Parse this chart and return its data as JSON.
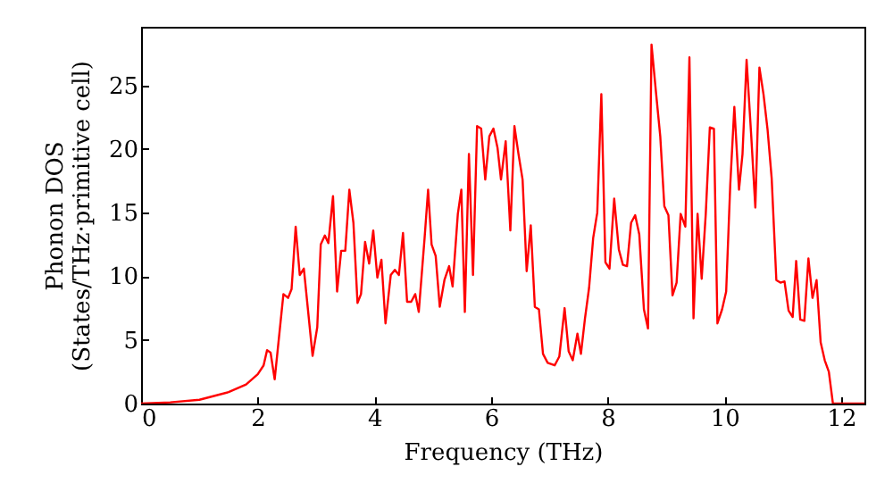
{
  "chart_data": {
    "type": "line",
    "xlabel": "Frequency (THz)",
    "ylabel": "Phonon DOS\n(States/THz·primitive cell)",
    "xlim": [
      0,
      12.4
    ],
    "ylim": [
      0,
      29.6
    ],
    "xticks": [
      0,
      2,
      4,
      6,
      8,
      10,
      12
    ],
    "yticks": [
      0,
      5,
      10,
      15,
      20,
      25
    ],
    "grid": false,
    "series": [
      {
        "color": "#ff0000",
        "x": [
          0,
          0.5,
          1.0,
          1.5,
          1.8,
          2.0,
          2.1,
          2.16,
          2.22,
          2.29,
          2.44,
          2.52,
          2.58,
          2.65,
          2.72,
          2.79,
          2.94,
          3.02,
          3.08,
          3.15,
          3.21,
          3.29,
          3.36,
          3.43,
          3.5,
          3.57,
          3.64,
          3.71,
          3.77,
          3.84,
          3.91,
          3.98,
          4.05,
          4.12,
          4.19,
          4.28,
          4.35,
          4.42,
          4.49,
          4.56,
          4.63,
          4.7,
          4.76,
          4.86,
          4.92,
          4.98,
          5.05,
          5.12,
          5.2,
          5.28,
          5.34,
          5.43,
          5.49,
          5.55,
          5.62,
          5.69,
          5.76,
          5.83,
          5.9,
          5.97,
          6.04,
          6.11,
          6.17,
          6.25,
          6.33,
          6.4,
          6.47,
          6.54,
          6.61,
          6.68,
          6.75,
          6.82,
          6.89,
          6.97,
          7.09,
          7.17,
          7.26,
          7.33,
          7.4,
          7.48,
          7.54,
          7.61,
          7.68,
          7.75,
          7.82,
          7.89,
          7.96,
          8.03,
          8.11,
          8.19,
          8.26,
          8.33,
          8.4,
          8.47,
          8.54,
          8.62,
          8.69,
          8.75,
          8.83,
          8.9,
          8.97,
          9.04,
          9.11,
          9.18,
          9.25,
          9.33,
          9.4,
          9.47,
          9.54,
          9.61,
          9.68,
          9.75,
          9.82,
          9.88,
          9.96,
          10.03,
          10.1,
          10.17,
          10.25,
          10.31,
          10.38,
          10.46,
          10.53,
          10.6,
          10.67,
          10.74,
          10.81,
          10.89,
          10.96,
          11.03,
          11.1,
          11.17,
          11.23,
          11.3,
          11.37,
          11.44,
          11.51,
          11.58,
          11.65,
          11.72,
          11.79,
          11.86,
          12.4
        ],
        "values": [
          0,
          0.1,
          0.3,
          0.9,
          1.5,
          2.3,
          3.0,
          4.2,
          4.0,
          1.9,
          8.6,
          8.3,
          9.0,
          13.9,
          10.1,
          10.6,
          3.75,
          6.0,
          12.5,
          13.2,
          12.6,
          16.3,
          8.8,
          12.0,
          12.0,
          16.8,
          14.2,
          7.9,
          8.6,
          12.7,
          11.0,
          13.6,
          9.9,
          11.3,
          6.3,
          10.1,
          10.5,
          10.1,
          13.4,
          8.0,
          8.0,
          8.6,
          7.2,
          13.0,
          16.8,
          12.5,
          11.6,
          7.6,
          9.7,
          10.8,
          9.2,
          14.9,
          16.8,
          7.2,
          19.6,
          10.1,
          21.8,
          21.6,
          17.6,
          21.0,
          21.6,
          20.1,
          17.6,
          20.6,
          13.6,
          21.8,
          19.6,
          17.6,
          10.4,
          14.0,
          7.6,
          7.4,
          3.9,
          3.2,
          3.0,
          3.7,
          7.5,
          4.1,
          3.4,
          5.5,
          3.9,
          6.7,
          9.1,
          13.0,
          15.0,
          24.3,
          11.1,
          10.6,
          16.1,
          12.1,
          10.9,
          10.8,
          14.2,
          14.8,
          13.3,
          7.4,
          5.9,
          28.2,
          24.3,
          21.0,
          15.5,
          14.8,
          8.5,
          9.5,
          14.9,
          13.9,
          27.2,
          6.7,
          14.9,
          9.8,
          14.9,
          21.7,
          21.6,
          6.3,
          7.4,
          8.8,
          17.2,
          23.3,
          16.8,
          19.6,
          27.0,
          21.0,
          15.4,
          26.4,
          24.3,
          21.5,
          17.7,
          9.7,
          9.5,
          9.6,
          7.3,
          6.8,
          11.2,
          6.6,
          6.5,
          11.4,
          8.3,
          9.7,
          4.8,
          3.4,
          2.5,
          0,
          0
        ]
      }
    ]
  }
}
